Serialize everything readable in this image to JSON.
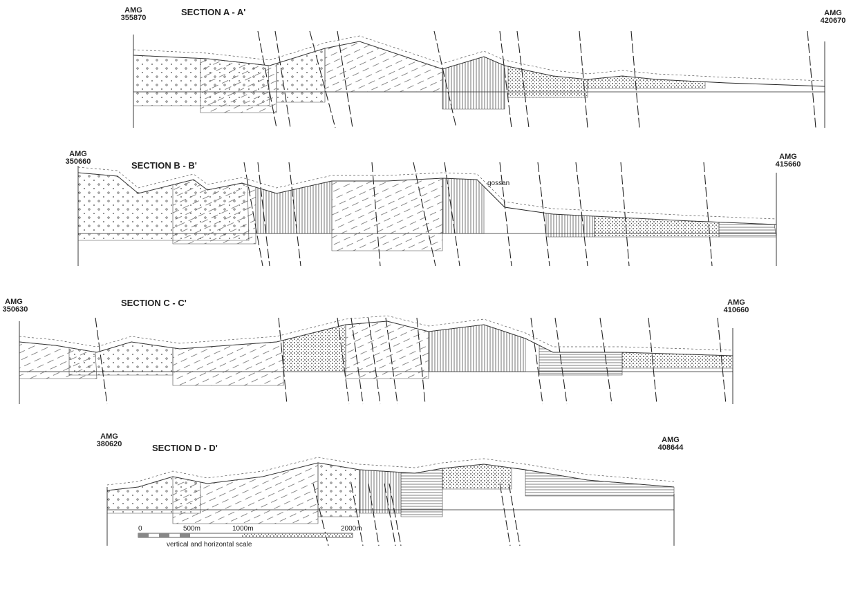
{
  "sections": [
    {
      "title": "SECTION A - A'",
      "left": {
        "label": "AMG",
        "coord": "355870"
      },
      "right": {
        "label": "AMG",
        "coord": "420670"
      }
    },
    {
      "title": "SECTION B - B'",
      "left": {
        "label": "AMG",
        "coord": "350660"
      },
      "right": {
        "label": "AMG",
        "coord": "415660"
      },
      "note": "gossan"
    },
    {
      "title": "SECTION C - C'",
      "left": {
        "label": "AMG",
        "coord": "350630"
      },
      "right": {
        "label": "AMG",
        "coord": "410660"
      }
    },
    {
      "title": "SECTION D - D'",
      "left": {
        "label": "AMG",
        "coord": "380620"
      },
      "right": {
        "label": "AMG",
        "coord": "408644"
      }
    }
  ],
  "scale": {
    "labels": [
      "0",
      "500m",
      "1000m",
      "2000m"
    ],
    "caption": "vertical and horizontal scale"
  }
}
